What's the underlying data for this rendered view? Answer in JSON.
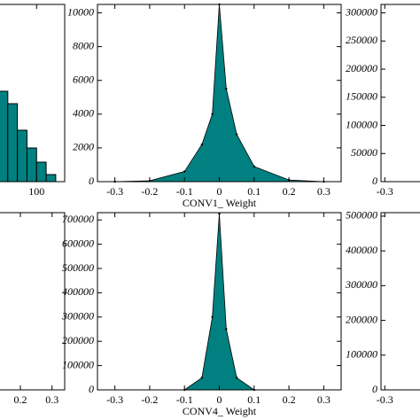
{
  "chart_data": [
    {
      "type": "histogram",
      "color": "#008080",
      "bins": [
        40,
        55,
        70,
        85,
        100,
        115,
        130
      ],
      "values": [
        51,
        44,
        29,
        19,
        11,
        4
      ],
      "xlim": [
        40,
        144
      ],
      "ylim": [
        0,
        100
      ],
      "xticks": [
        100
      ]
    },
    {
      "type": "area",
      "color": "#008080",
      "xlabel": "CONV1_ Weight",
      "x": [
        -0.3,
        -0.2,
        -0.1,
        -0.05,
        -0.02,
        0,
        0.02,
        0.05,
        0.1,
        0.2,
        0.3
      ],
      "values": [
        0,
        50,
        600,
        2200,
        4000,
        10500,
        5500,
        2800,
        900,
        100,
        0
      ],
      "xlim": [
        -0.35,
        0.35
      ],
      "ylim": [
        0,
        10500
      ],
      "xticks": [
        -0.3,
        -0.2,
        -0.1,
        0,
        0.1,
        0.2,
        0.3
      ],
      "yticks": [
        0,
        2000,
        4000,
        6000,
        8000,
        10000
      ]
    },
    {
      "type": "area",
      "color": "#008080",
      "xlim": [
        -0.35,
        0.35
      ],
      "ylim": [
        0,
        315000
      ],
      "xticks": [
        -0.3
      ],
      "yticks": [
        0,
        50000,
        100000,
        150000,
        200000,
        250000,
        300000
      ]
    },
    {
      "type": "area",
      "color": "#008080",
      "xlim": [
        0.13,
        0.34
      ],
      "ylim": [
        0,
        100
      ],
      "xticks": [
        0.2,
        0.3
      ]
    },
    {
      "type": "area",
      "color": "#008080",
      "xlabel": "CONV4_ Weight",
      "x": [
        -0.1,
        -0.05,
        -0.02,
        0,
        0.02,
        0.05,
        0.1
      ],
      "values": [
        0,
        50000,
        300000,
        725000,
        250000,
        50000,
        0
      ],
      "xlim": [
        -0.35,
        0.35
      ],
      "ylim": [
        0,
        730000
      ],
      "xticks": [
        -0.3,
        -0.2,
        -0.1,
        0,
        0.1,
        0.2,
        0.3
      ],
      "yticks": [
        0,
        100000,
        200000,
        300000,
        400000,
        500000,
        600000,
        700000
      ]
    },
    {
      "type": "area",
      "color": "#008080",
      "xlim": [
        -0.35,
        0.35
      ],
      "ylim": [
        0,
        510000
      ],
      "xticks": [
        -0.3
      ],
      "yticks": [
        0,
        100000,
        200000,
        300000,
        400000,
        500000
      ]
    }
  ]
}
